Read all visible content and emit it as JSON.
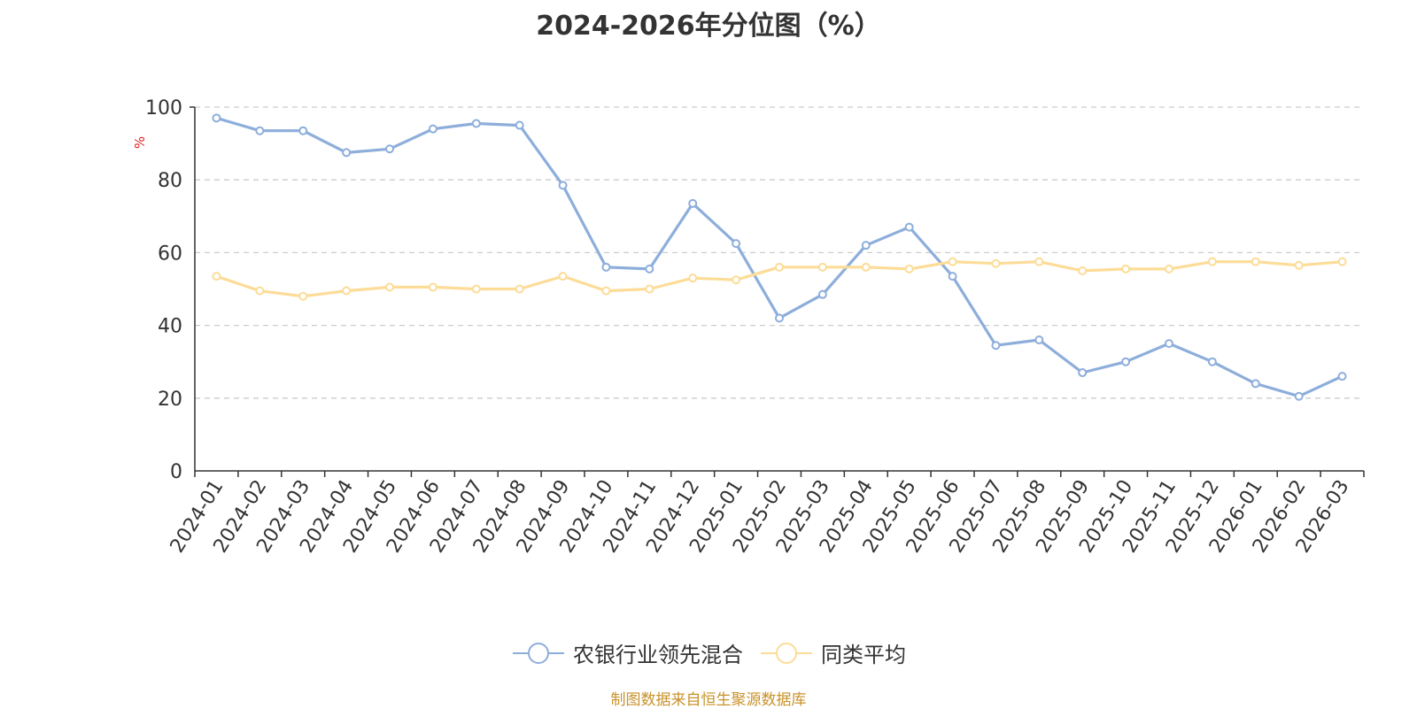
{
  "chart_data": {
    "type": "line",
    "title": "2024-2026年分位图（%）",
    "ylabel": "%",
    "xlabel": "",
    "ylim": [
      0,
      100
    ],
    "yticks": [
      "0",
      "20",
      "40",
      "60",
      "80",
      "100"
    ],
    "grid": true,
    "legend_position": "bottom-center",
    "categories": [
      "2024-01",
      "2024-02",
      "2024-03",
      "2024-04",
      "2024-05",
      "2024-06",
      "2024-07",
      "2024-08",
      "2024-09",
      "2024-10",
      "2024-11",
      "2024-12",
      "2025-01",
      "2025-02",
      "2025-03",
      "2025-04",
      "2025-05",
      "2025-06",
      "2025-07",
      "2025-08",
      "2025-09",
      "2025-10",
      "2025-11",
      "2025-12",
      "2026-01",
      "2026-02",
      "2026-03"
    ],
    "series": [
      {
        "name": "农银行业领先混合",
        "color": "#8daedb",
        "values": [
          97,
          93.5,
          93.5,
          87.5,
          88.5,
          94,
          95.5,
          95,
          78.5,
          56,
          55.5,
          73.5,
          62.5,
          42,
          48.5,
          62,
          67,
          53.5,
          34.5,
          36,
          27,
          30,
          35,
          30,
          24,
          20.5,
          26
        ]
      },
      {
        "name": "同类平均",
        "color": "#fcdc97",
        "values": [
          53.5,
          49.5,
          48,
          49.5,
          50.5,
          50.5,
          50,
          50,
          53.5,
          49.5,
          50,
          53,
          52.5,
          56,
          56,
          56,
          55.5,
          57.5,
          57,
          57.5,
          55,
          55.5,
          55.5,
          57.5,
          57.5,
          56.5,
          57.5
        ]
      }
    ]
  },
  "footer": {
    "source": "制图数据来自恒生聚源数据库"
  }
}
